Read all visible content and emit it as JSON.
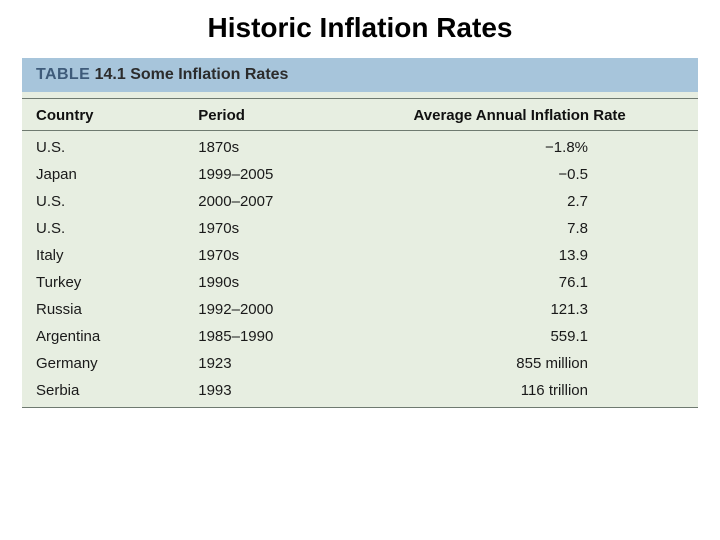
{
  "title": "Historic Inflation Rates",
  "table": {
    "header_bar": {
      "label": "TABLE",
      "number": "14.1",
      "title": "Some Inflation Rates"
    },
    "header_bar_bg": "#a7c5db",
    "body_bg": "#e7eee1",
    "rule_color": "#6f7a70",
    "columns": [
      "Country",
      "Period",
      "Average Annual Inflation Rate"
    ],
    "rows": [
      {
        "country": "U.S.",
        "period": "1870s",
        "rate": "−1.8%"
      },
      {
        "country": "Japan",
        "period": "1999–2005",
        "rate": "−0.5"
      },
      {
        "country": "U.S.",
        "period": "2000–2007",
        "rate": "2.7"
      },
      {
        "country": "U.S.",
        "period": "1970s",
        "rate": "7.8"
      },
      {
        "country": "Italy",
        "period": "1970s",
        "rate": "13.9"
      },
      {
        "country": "Turkey",
        "period": "1990s",
        "rate": "76.1"
      },
      {
        "country": "Russia",
        "period": "1992–2000",
        "rate": "121.3"
      },
      {
        "country": "Argentina",
        "period": "1985–1990",
        "rate": "559.1"
      },
      {
        "country": "Germany",
        "period": "1923",
        "rate": "855 million"
      },
      {
        "country": "Serbia",
        "period": "1993",
        "rate": "116 trillion"
      }
    ],
    "fontsize_title": 28,
    "fontsize_header": 15,
    "fontsize_body": 15
  }
}
